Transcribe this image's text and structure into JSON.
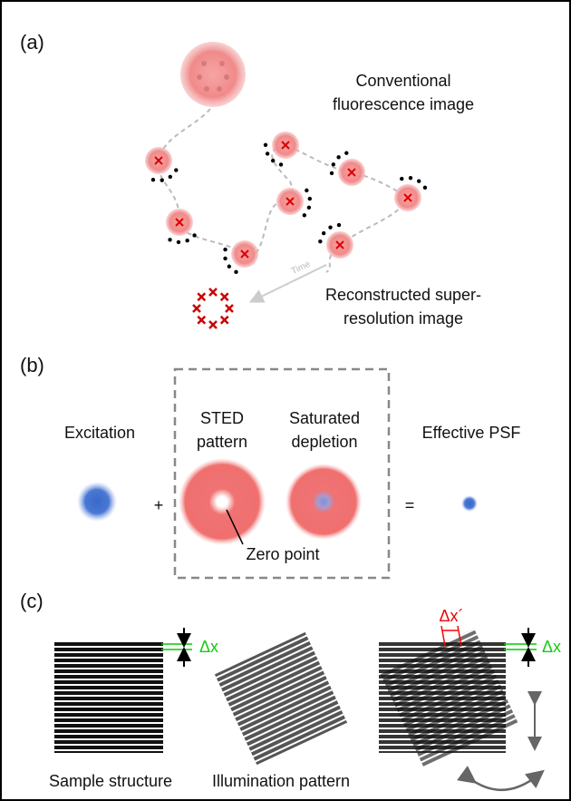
{
  "panel_a": {
    "label": "(a)",
    "conventional": [
      "Conventional",
      "fluorescence image"
    ],
    "time": "Time",
    "reconstructed": [
      "Reconstructed super-",
      "resolution image"
    ]
  },
  "panel_b": {
    "label": "(b)",
    "excitation": "Excitation",
    "plus": "+",
    "sted": [
      "STED",
      "pattern"
    ],
    "saturated": [
      "Saturated",
      "depletion"
    ],
    "equals": "=",
    "effective": "Effective PSF",
    "zero_point": "Zero point"
  },
  "panel_c": {
    "label": "(c)",
    "delta_x_left": "Δx",
    "delta_x_prime": "Δx´",
    "delta_x_right": "Δx",
    "sample": "Sample structure",
    "illumination": "Illumination pattern"
  }
}
